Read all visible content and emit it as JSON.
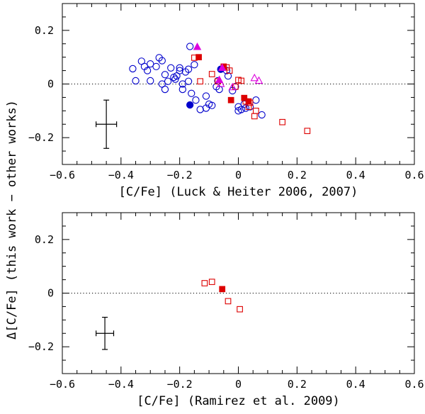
{
  "figure": {
    "ylabel": "Δ[C/Fe] (this work − other works)"
  },
  "colors": {
    "circle": "#0000cc",
    "square": "#dd0000",
    "triangle": "#dd00dd",
    "axis": "#000000"
  },
  "chart_data": [
    {
      "type": "scatter",
      "xlabel": "[C/Fe] (Luck & Heiter 2006, 2007)",
      "xlim": [
        -0.6,
        0.6
      ],
      "ylim": [
        -0.3,
        0.3
      ],
      "xticks": [
        -0.6,
        -0.4,
        -0.2,
        0,
        0.2,
        0.4,
        0.6
      ],
      "xtick_labels": [
        "−0.6",
        "−0.4",
        "−0.2",
        "0",
        "0.2",
        "0.4",
        "0.6"
      ],
      "yticks": [
        -0.2,
        0,
        0.2
      ],
      "ytick_labels": [
        "−0.2",
        "0",
        "0.2"
      ],
      "reference_line": 0,
      "error_bar": {
        "x": -0.45,
        "y": -0.15,
        "xerr": 0.035,
        "yerr": 0.09
      },
      "series": [
        {
          "name": "open circles",
          "marker": "circle",
          "filled": false,
          "color": "#0000cc",
          "points": [
            [
              -0.36,
              0.057
            ],
            [
              -0.35,
              0.012
            ],
            [
              -0.33,
              0.085
            ],
            [
              -0.32,
              0.065
            ],
            [
              -0.31,
              0.05
            ],
            [
              -0.3,
              0.012
            ],
            [
              -0.3,
              0.075
            ],
            [
              -0.28,
              0.065
            ],
            [
              -0.27,
              0.098
            ],
            [
              -0.26,
              0.087
            ],
            [
              -0.26,
              0.0
            ],
            [
              -0.25,
              -0.02
            ],
            [
              -0.25,
              0.035
            ],
            [
              -0.24,
              0.01
            ],
            [
              -0.23,
              0.06
            ],
            [
              -0.22,
              0.025
            ],
            [
              -0.215,
              0.018
            ],
            [
              -0.21,
              0.03
            ],
            [
              -0.2,
              0.06
            ],
            [
              -0.2,
              0.05
            ],
            [
              -0.19,
              0.0
            ],
            [
              -0.19,
              -0.02
            ],
            [
              -0.18,
              0.045
            ],
            [
              -0.17,
              0.055
            ],
            [
              -0.17,
              0.01
            ],
            [
              -0.165,
              0.14
            ],
            [
              -0.15,
              0.072
            ],
            [
              -0.16,
              -0.035
            ],
            [
              -0.145,
              -0.06
            ],
            [
              -0.13,
              -0.095
            ],
            [
              -0.11,
              -0.09
            ],
            [
              -0.11,
              -0.045
            ],
            [
              -0.1,
              -0.075
            ],
            [
              -0.09,
              -0.08
            ],
            [
              -0.075,
              -0.01
            ],
            [
              -0.07,
              0.012
            ],
            [
              -0.065,
              -0.02
            ],
            [
              -0.04,
              0.05
            ],
            [
              -0.035,
              0.03
            ],
            [
              -0.02,
              -0.025
            ],
            [
              -0.01,
              -0.01
            ],
            [
              0.0,
              -0.085
            ],
            [
              0.0,
              -0.1
            ],
            [
              0.01,
              -0.095
            ],
            [
              0.02,
              -0.075
            ],
            [
              0.025,
              -0.09
            ],
            [
              0.04,
              -0.085
            ],
            [
              0.06,
              -0.06
            ],
            [
              0.08,
              -0.115
            ]
          ]
        },
        {
          "name": "filled circles",
          "marker": "circle",
          "filled": true,
          "color": "#0000cc",
          "points": [
            [
              -0.165,
              -0.078
            ],
            [
              -0.06,
              0.055
            ]
          ]
        },
        {
          "name": "open squares",
          "marker": "square",
          "filled": false,
          "color": "#dd0000",
          "points": [
            [
              -0.15,
              0.098
            ],
            [
              -0.13,
              0.01
            ],
            [
              -0.09,
              0.037
            ],
            [
              -0.07,
              0.01
            ],
            [
              -0.04,
              0.062
            ],
            [
              -0.03,
              0.05
            ],
            [
              -0.01,
              -0.01
            ],
            [
              0.0,
              0.015
            ],
            [
              0.01,
              0.012
            ],
            [
              0.025,
              -0.065
            ],
            [
              0.035,
              -0.085
            ],
            [
              0.04,
              -0.07
            ],
            [
              0.055,
              -0.12
            ],
            [
              0.06,
              -0.1
            ],
            [
              0.15,
              -0.142
            ],
            [
              0.235,
              -0.175
            ]
          ]
        },
        {
          "name": "filled squares",
          "marker": "square",
          "filled": true,
          "color": "#dd0000",
          "points": [
            [
              -0.135,
              0.1
            ],
            [
              -0.05,
              0.065
            ],
            [
              -0.025,
              -0.06
            ],
            [
              0.02,
              -0.052
            ],
            [
              0.035,
              -0.065
            ]
          ]
        },
        {
          "name": "open triangles",
          "marker": "triangle",
          "filled": false,
          "color": "#dd00dd",
          "points": [
            [
              -0.06,
              0.0
            ],
            [
              -0.02,
              -0.012
            ],
            [
              0.055,
              0.022
            ],
            [
              0.07,
              0.012
            ]
          ]
        },
        {
          "name": "filled triangles",
          "marker": "triangle",
          "filled": true,
          "color": "#dd00dd",
          "points": [
            [
              -0.14,
              0.138
            ],
            [
              -0.065,
              0.015
            ],
            [
              -0.055,
              0.06
            ]
          ]
        }
      ]
    },
    {
      "type": "scatter",
      "xlabel": "[C/Fe] (Ramirez et al. 2009)",
      "xlim": [
        -0.6,
        0.6
      ],
      "ylim": [
        -0.3,
        0.3
      ],
      "xticks": [
        -0.6,
        -0.4,
        -0.2,
        0,
        0.2,
        0.4,
        0.6
      ],
      "xtick_labels": [
        "−0.6",
        "−0.4",
        "−0.2",
        "0",
        "0.2",
        "0.4",
        "0.6"
      ],
      "yticks": [
        -0.2,
        0,
        0.2
      ],
      "ytick_labels": [
        "−0.2",
        "0",
        "0.2"
      ],
      "reference_line": 0,
      "error_bar": {
        "x": -0.455,
        "y": -0.15,
        "xerr": 0.03,
        "yerr": 0.06
      },
      "series": [
        {
          "name": "open squares",
          "marker": "square",
          "filled": false,
          "color": "#dd0000",
          "points": [
            [
              -0.115,
              0.037
            ],
            [
              -0.09,
              0.042
            ],
            [
              -0.035,
              -0.03
            ],
            [
              0.005,
              -0.06
            ]
          ]
        },
        {
          "name": "filled squares",
          "marker": "square",
          "filled": true,
          "color": "#dd0000",
          "points": [
            [
              -0.055,
              0.015
            ]
          ]
        }
      ]
    }
  ]
}
